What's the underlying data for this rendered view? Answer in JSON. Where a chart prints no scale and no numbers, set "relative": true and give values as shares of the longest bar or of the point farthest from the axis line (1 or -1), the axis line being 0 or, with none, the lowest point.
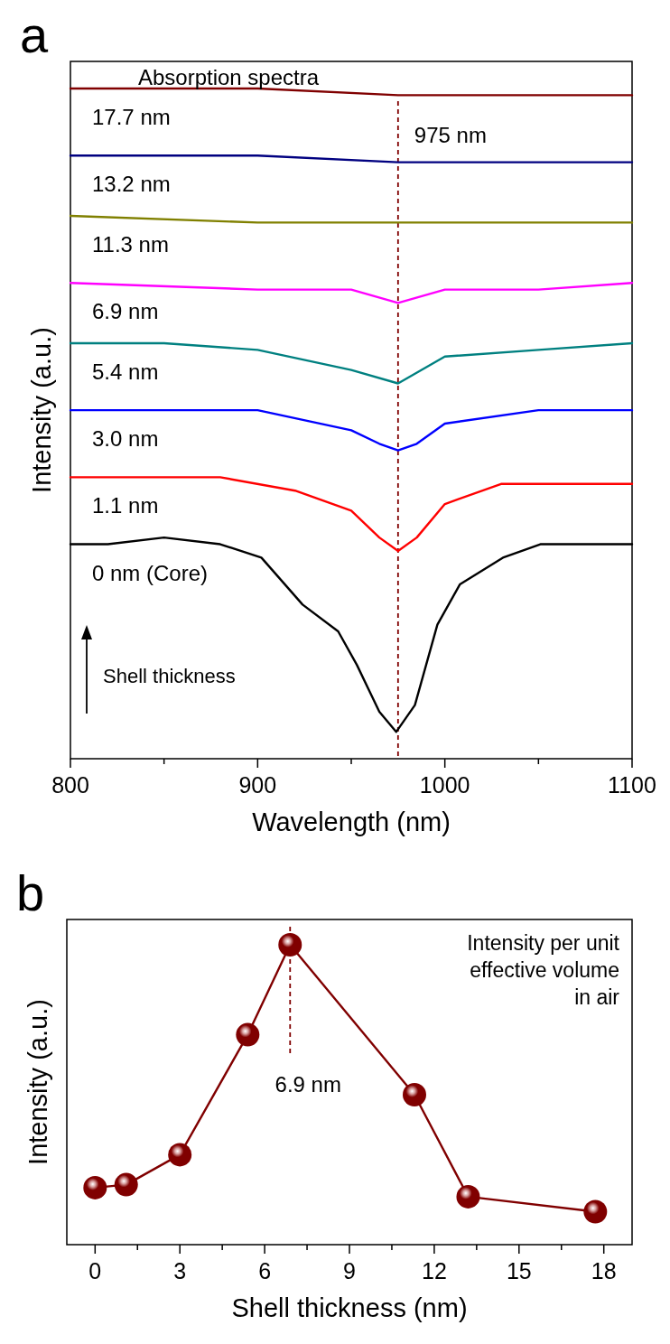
{
  "chart_data": [
    {
      "type": "line",
      "title": "Absorption spectra",
      "xlabel": "Wavelength (nm)",
      "ylabel": "Intensity (a.u.)",
      "relative": true,
      "marker": "none",
      "line_style": "solid",
      "xlim": [
        800,
        1100
      ],
      "xticks": [
        800,
        {
          "value": 850,
          "label": null
        },
        900,
        {
          "value": 950,
          "label": null
        },
        1000,
        {
          "value": 1050,
          "label": null
        },
        1100
      ],
      "series": [
        {
          "name": "17.7 nm",
          "color": "#800000",
          "x": [
            800,
            850,
            900,
            975,
            1100
          ],
          "values": [
            1,
            1,
            1,
            0.99,
            0.99
          ]
        },
        {
          "name": "13.2 nm",
          "color": "#000080",
          "x": [
            800,
            900,
            975,
            1050,
            1100
          ],
          "values": [
            0.9,
            0.9,
            0.89,
            0.89,
            0.89
          ]
        },
        {
          "name": "11.3 nm",
          "color": "#808000",
          "x": [
            800,
            900,
            975,
            1000,
            1100
          ],
          "values": [
            0.81,
            0.8,
            0.8,
            0.8,
            0.8
          ]
        },
        {
          "name": "6.9 nm",
          "color": "#ff00ff",
          "x": [
            800,
            900,
            950,
            975,
            1000,
            1050,
            1100
          ],
          "values": [
            0.71,
            0.7,
            0.7,
            0.68,
            0.7,
            0.7,
            0.71
          ]
        },
        {
          "name": "5.4 nm",
          "color": "#008080",
          "x": [
            800,
            850,
            900,
            950,
            975,
            1000,
            1050,
            1100
          ],
          "values": [
            0.62,
            0.62,
            0.61,
            0.58,
            0.56,
            0.6,
            0.61,
            0.62
          ]
        },
        {
          "name": "3.0 nm",
          "color": "#0000ff",
          "x": [
            800,
            850,
            900,
            950,
            965,
            975,
            985,
            1000,
            1050,
            1100
          ],
          "values": [
            0.52,
            0.52,
            0.52,
            0.49,
            0.47,
            0.46,
            0.47,
            0.5,
            0.52,
            0.52
          ]
        },
        {
          "name": "1.1 nm",
          "color": "#ff0000",
          "x": [
            800,
            850,
            880,
            920,
            950,
            965,
            975,
            985,
            1000,
            1030,
            1060,
            1100
          ],
          "values": [
            0.42,
            0.42,
            0.42,
            0.4,
            0.37,
            0.33,
            0.31,
            0.33,
            0.38,
            0.41,
            0.41,
            0.41
          ]
        },
        {
          "name": "0 nm (Core)",
          "color": "#000000",
          "x": [
            800,
            820,
            850,
            880,
            902,
            924,
            943,
            953,
            965,
            974,
            984,
            996,
            1008,
            1031,
            1051,
            1075,
            1100
          ],
          "values": [
            0.32,
            0.32,
            0.33,
            0.32,
            0.3,
            0.23,
            0.19,
            0.14,
            0.07,
            0.04,
            0.08,
            0.2,
            0.26,
            0.3,
            0.32,
            0.32,
            0.32
          ]
        }
      ],
      "ref_lines": [
        {
          "axis": "x",
          "value": 975,
          "label": "975 nm",
          "color": "#800000",
          "line_style": "dashed"
        }
      ],
      "annotations": [
        "a",
        "Shell thickness"
      ]
    },
    {
      "type": "line",
      "xlabel": "Shell thickness (nm)",
      "ylabel": "Intensity (a.u.)",
      "relative": true,
      "marker": "circle",
      "line_style": "solid",
      "xlim": [
        -1,
        19
      ],
      "xticks": [
        0,
        {
          "value": 1.5,
          "label": null
        },
        3,
        {
          "value": 4.5,
          "label": null
        },
        6,
        {
          "value": 7.5,
          "label": null
        },
        9,
        {
          "value": 10.5,
          "label": null
        },
        12,
        {
          "value": 13.5,
          "label": null
        },
        15,
        {
          "value": 16.5,
          "label": null
        },
        18
      ],
      "series": [
        {
          "color": "#800000",
          "x": [
            0,
            1.1,
            3,
            5.4,
            6.9,
            11.3,
            13.2,
            17.7
          ],
          "values": [
            0.19,
            0.2,
            0.3,
            0.7,
            1,
            0.5,
            0.16,
            0.11
          ]
        }
      ],
      "ref_lines": [
        {
          "axis": "x",
          "value": 6.9,
          "label": "6.9 nm",
          "color": "#800000",
          "line_style": "dashed"
        }
      ],
      "annotations": [
        "b",
        "Intensity per unit\neffective volume\nin air"
      ]
    }
  ]
}
